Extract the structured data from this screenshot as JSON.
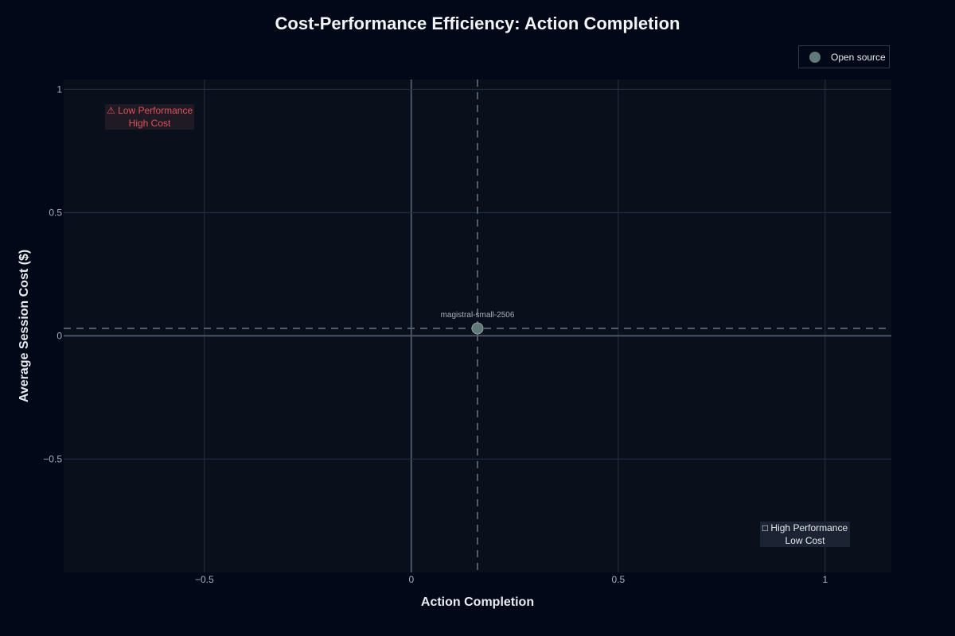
{
  "chart_data": {
    "type": "scatter",
    "title": "Cost-Performance Efficiency: Action Completion",
    "xlabel": "Action Completion",
    "ylabel": "Average Session Cost ($)",
    "xlim": [
      -0.84,
      1.16
    ],
    "ylim": [
      -0.96,
      1.04
    ],
    "x_ticks": [
      -0.5,
      0,
      0.5,
      1
    ],
    "x_tick_labels": [
      "−0.5",
      "0",
      "0.5",
      "1"
    ],
    "y_ticks": [
      -0.5,
      0,
      0.5,
      1
    ],
    "y_tick_labels": [
      "−0.5",
      "0",
      "0.5",
      "1"
    ],
    "grid": true,
    "legend_position": "top-right",
    "series": [
      {
        "name": "Open source",
        "color": "#5f7a78",
        "points": [
          {
            "x": 0.16,
            "y": 0.03,
            "label": "magistral-small-2506"
          }
        ]
      }
    ],
    "reference_lines": {
      "x": 0.16,
      "y": 0.03
    },
    "annotations": [
      {
        "text_line1": "⚠ Low Performance",
        "text_line2": "High Cost",
        "color": "#e0535e"
      },
      {
        "text_line1": "□ High Performance",
        "text_line2": "Low Cost",
        "color": "#e6e9ee"
      }
    ]
  }
}
